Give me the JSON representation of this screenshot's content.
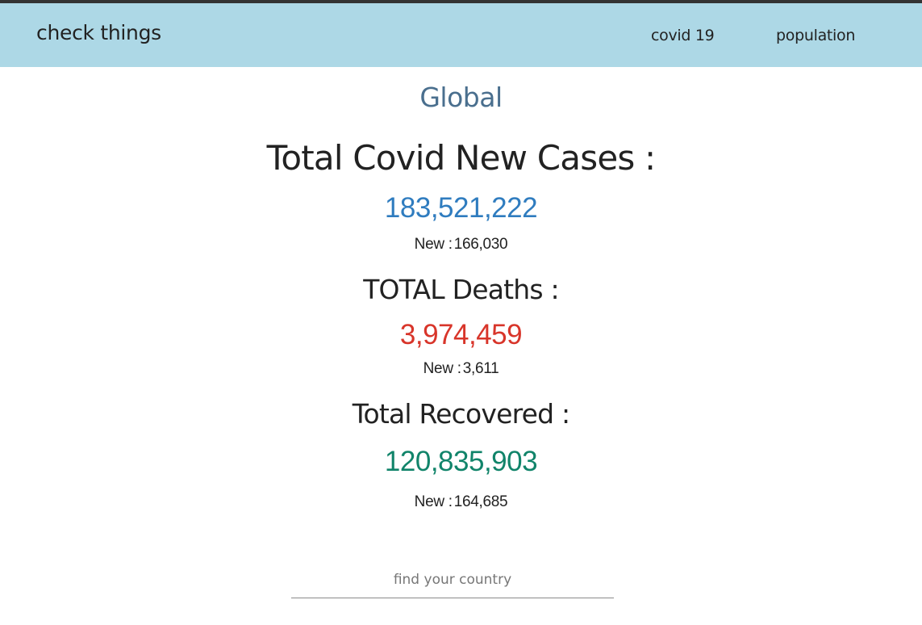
{
  "navbar": {
    "brand": "check things",
    "links": [
      {
        "label": "covid 19"
      },
      {
        "label": "population"
      }
    ]
  },
  "main": {
    "region": "Global",
    "stats": {
      "cases": {
        "heading": "Total Covid New Cases :",
        "total": "183,521,222",
        "new_label": "New :",
        "new_value": "166,030",
        "color": "#2f7cbf"
      },
      "deaths": {
        "heading": "TOTAL Deaths :",
        "total": "3,974,459",
        "new_label": "New :",
        "new_value": "3,611",
        "color": "#d8352a"
      },
      "recovered": {
        "heading": "Total Recovered :",
        "total": "120,835,903",
        "new_label": "New :",
        "new_value": "164,685",
        "color": "#11846a"
      }
    },
    "search": {
      "placeholder": "find your country",
      "value": ""
    }
  },
  "colors": {
    "navbar_bg": "#add8e6",
    "region_title": "#4a6f8e"
  }
}
